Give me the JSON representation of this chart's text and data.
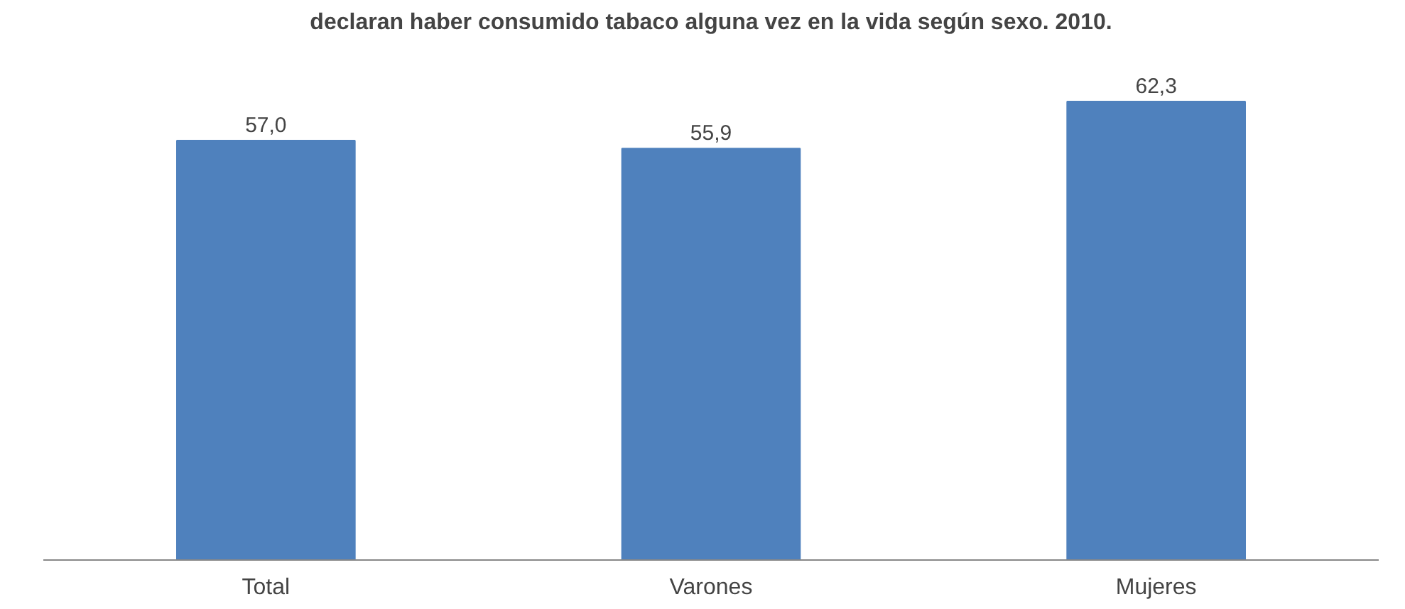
{
  "chart_data": {
    "type": "bar",
    "title": "declaran haber consumido tabaco alguna vez en la vida según sexo. 2010.",
    "categories": [
      "Total",
      "Varones",
      "Mujeres"
    ],
    "values": [
      57.0,
      55.9,
      62.3
    ],
    "value_labels": [
      "57,0",
      "55,9",
      "62,3"
    ],
    "color": "#4f81bd",
    "grid": false
  }
}
